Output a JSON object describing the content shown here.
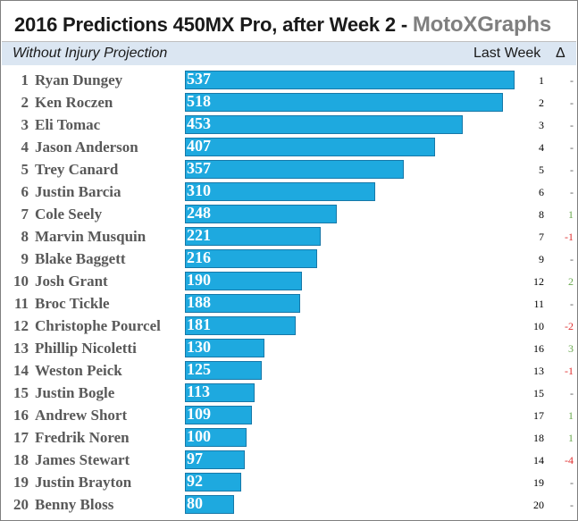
{
  "header": {
    "title": "2016 Predictions 450MX Pro, after Week 2  -",
    "brand": "MotoXGraphs",
    "subtitle": "Without Injury Projection",
    "last_week_label": "Last Week",
    "delta_label": "Δ"
  },
  "colors": {
    "bar_fill": "#1ea9df",
    "bar_border": "#1778a8",
    "header_band": "#dbe6f2",
    "delta_up": "#6aa84f",
    "delta_down": "#e03030",
    "delta_none": "#595959"
  },
  "chart_data": {
    "type": "bar",
    "orientation": "horizontal",
    "title": "2016 Predictions 450MX Pro, after Week 2",
    "subtitle": "Without Injury Projection",
    "xlim": [
      0,
      537
    ],
    "categories": [
      "Ryan Dungey",
      "Ken Roczen",
      "Eli Tomac",
      "Jason Anderson",
      "Trey Canard",
      "Justin Barcia",
      "Cole Seely",
      "Marvin Musquin",
      "Blake Baggett",
      "Josh Grant",
      "Broc Tickle",
      "Christophe Pourcel",
      "Phillip Nicoletti",
      "Weston Peick",
      "Justin Bogle",
      "Andrew Short",
      "Fredrik Noren",
      "James Stewart",
      "Justin Brayton",
      "Benny Bloss"
    ],
    "ranks": [
      "1",
      "2",
      "3",
      "4",
      "5",
      "6",
      "7",
      "8",
      "9",
      "10",
      "11",
      "12",
      "13",
      "14",
      "15",
      "16",
      "17",
      "18",
      "19",
      "20"
    ],
    "values": [
      537,
      518,
      453,
      407,
      357,
      310,
      248,
      221,
      216,
      190,
      188,
      181,
      130,
      125,
      113,
      109,
      100,
      97,
      92,
      80
    ],
    "last_week": [
      "1",
      "2",
      "3",
      "4",
      "5",
      "6",
      "8",
      "7",
      "9",
      "12",
      "11",
      "10",
      "16",
      "13",
      "15",
      "17",
      "18",
      "14",
      "19",
      "20"
    ],
    "delta": [
      "-",
      "-",
      "-",
      "-",
      "-",
      "-",
      "1",
      "-1",
      "-",
      "2",
      "-",
      "-2",
      "3",
      "-1",
      "-",
      "1",
      "1",
      "-4",
      "-",
      "-"
    ]
  }
}
